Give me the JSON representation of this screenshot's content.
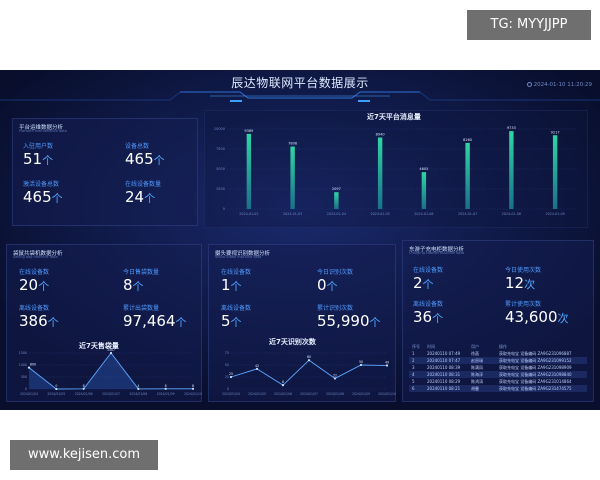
{
  "watermark_top": "TG: MYYJJPP",
  "watermark_bottom": "www.kejisen.com",
  "header": {
    "title": "辰达物联网平台数据展示",
    "datetime": "2024-01-10 11:20:29"
  },
  "panel_platform": {
    "title": "平台运维数据分析",
    "subtitle": "Platform maintenance data",
    "stats": [
      {
        "label": "入驻用户数",
        "value": "51",
        "unit": "个"
      },
      {
        "label": "设备总数",
        "value": "465",
        "unit": "个"
      },
      {
        "label": "激活设备总数",
        "value": "465",
        "unit": "个"
      },
      {
        "label": "在线设备数量",
        "value": "24",
        "unit": "个"
      }
    ]
  },
  "panel_messages": {
    "chart_data": {
      "type": "bar",
      "title": "近7天平台消息量",
      "categories": [
        "2024-01-02",
        "2024-01-03",
        "2024-01-04",
        "2024-01-05",
        "2024-01-06",
        "2024-01-07",
        "2024-01-08",
        "2024-01-09"
      ],
      "values": [
        9389,
        7808,
        2097,
        8940,
        4605,
        8260,
        9733,
        9217
      ],
      "ylim": [
        0,
        10000
      ],
      "yticks": [
        "0",
        "2500",
        "5000",
        "7500",
        "10000"
      ],
      "bar_color": "#2fd6a4"
    }
  },
  "panel_bags": {
    "title": "袋鼠共袋机数据分析",
    "subtitle": "Selling bag machine data",
    "stats": [
      {
        "label": "在线设备数",
        "value": "20",
        "unit": "个"
      },
      {
        "label": "今日售袋数量",
        "value": "8",
        "unit": "个"
      },
      {
        "label": "离线设备数",
        "value": "386",
        "unit": "个"
      },
      {
        "label": "累计出袋数量",
        "value": "97,464",
        "unit": "个"
      }
    ],
    "chart_data": {
      "type": "area",
      "title": "近7天售袋量",
      "categories": [
        "2024/01/04",
        "2024/01/05",
        "2024/01/06",
        "2024/01/07",
        "2024/01/08",
        "2024/01/09",
        "2024/01/10"
      ],
      "values": [
        890,
        0,
        8,
        1507,
        4,
        8,
        8
      ],
      "ylim": [
        0,
        1500
      ],
      "yticks": [
        "0",
        "500",
        "1000",
        "1500"
      ]
    }
  },
  "panel_camera": {
    "title": "摄头要视识别数据分析",
    "subtitle": "Visual video machine data",
    "stats": [
      {
        "label": "在线设备数",
        "value": "1",
        "unit": "个"
      },
      {
        "label": "今日识别次数",
        "value": "0",
        "unit": "个"
      },
      {
        "label": "离线设备数",
        "value": "5",
        "unit": "个"
      },
      {
        "label": "累计识别次数",
        "value": "55,990",
        "unit": "个"
      }
    ],
    "chart_data": {
      "type": "line",
      "title": "近7天识别次数",
      "categories": [
        "2024/01/04",
        "2024/01/05",
        "2024/01/06",
        "2024/01/07",
        "2024/01/08",
        "2024/01/09",
        "2024/01/10"
      ],
      "values": [
        25,
        42,
        8,
        60,
        22,
        50,
        49
      ],
      "ylim": [
        0,
        75
      ],
      "yticks": [
        "0",
        "25",
        "50",
        "75"
      ]
    }
  },
  "panel_charger": {
    "title": "东游子充电柜数据分析",
    "subtitle": "Charging cabinet machine data",
    "stats": [
      {
        "label": "在线设备数",
        "value": "2",
        "unit": "个"
      },
      {
        "label": "今日使用次数",
        "value": "12",
        "unit": "次"
      },
      {
        "label": "离线设备数",
        "value": "36",
        "unit": "个"
      },
      {
        "label": "累计使用次数",
        "value": "43,600",
        "unit": "次"
      }
    ],
    "table": {
      "headers": [
        "序号",
        "时间",
        "用户",
        "操作"
      ],
      "rows": [
        [
          "1",
          "20240110 07:49",
          "徐菡",
          "获取充电宝 设备编码 ZA9G231096887"
        ],
        [
          "2",
          "20240110 07:47",
          "赵昌瑞",
          "获取充电宝 设备编码 ZA9G231099152"
        ],
        [
          "3",
          "20240110 08:39",
          "陈满凤",
          "获取充电宝 设备编码 ZA9G231098909"
        ],
        [
          "4",
          "20240110 08:31",
          "陈海淳",
          "获取充电宝 设备编码 ZA9G231098840"
        ],
        [
          "5",
          "20240110 08:29",
          "陈鸿涛",
          "获取充电宝 设备编码 ZA9G231014864"
        ],
        [
          "6",
          "20240110 08:21",
          "胡曼",
          "获取充电宝 设备编码 ZA9G231474575"
        ]
      ]
    }
  }
}
